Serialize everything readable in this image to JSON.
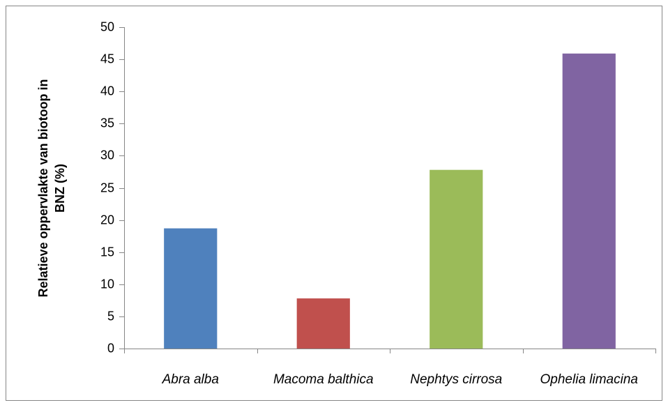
{
  "chart_data": {
    "type": "bar",
    "ylabel": [
      "Relatieve oppervlakte van biotoop in",
      "BNZ (%)"
    ],
    "categories": [
      "Abra alba",
      "Macoma balthica",
      "Nephtys cirrosa",
      "Ophelia limacina"
    ],
    "values": [
      18.7,
      7.8,
      27.8,
      45.9
    ],
    "colors": [
      "#4f81bd",
      "#c0504d",
      "#9bbb59",
      "#8064a2"
    ],
    "ylim": [
      0,
      50
    ],
    "yticks": [
      0,
      5,
      10,
      15,
      20,
      25,
      30,
      35,
      40,
      45,
      50
    ],
    "grid": false
  }
}
